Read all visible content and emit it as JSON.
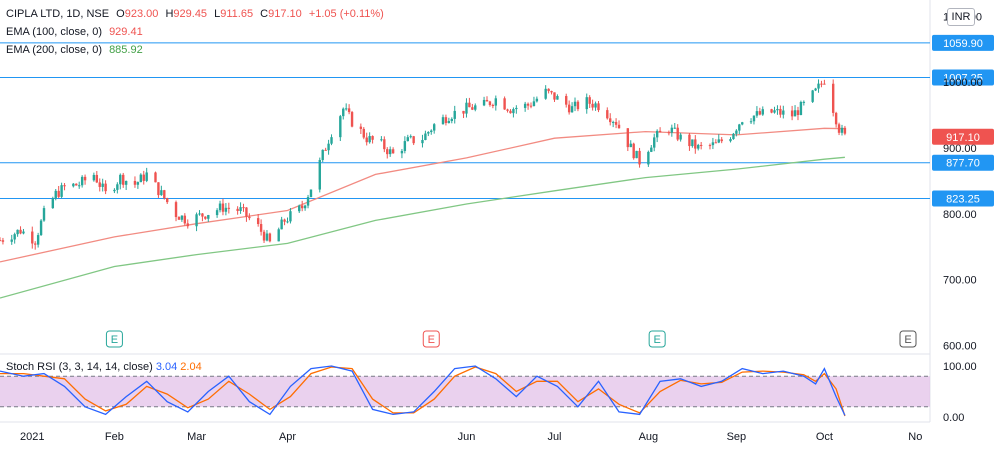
{
  "header": {
    "symbol": "CIPLA LTD, 1D, NSE",
    "open_label": "O",
    "open": "923.00",
    "high_label": "H",
    "high": "929.45",
    "low_label": "L",
    "low": "911.65",
    "close_label": "C",
    "close": "917.10",
    "change": "+1.05 (+0.11%)",
    "ema100_label": "EMA (100, close, 0)",
    "ema100_value": "929.41",
    "ema200_label": "EMA (200, close, 0)",
    "ema200_value": "885.92",
    "currency": "INR"
  },
  "stoch": {
    "label": "Stoch RSI (3, 3, 14, 14, close)",
    "k_value": "3.04",
    "d_value": "2.04",
    "levels": [
      80,
      20
    ],
    "ylim": [
      0,
      100
    ],
    "y_ticks": [
      "100.00",
      "0.00"
    ]
  },
  "colors": {
    "up": "#26a69a",
    "down": "#ef5350",
    "ema100": "#f28b82",
    "ema200": "#81c784",
    "hline": "#2196f3",
    "stoch_k": "#2962ff",
    "stoch_d": "#ff6d00",
    "stoch_band": "#e1bee7"
  },
  "chart_data": {
    "type": "candlestick",
    "title": "CIPLA LTD, 1D, NSE",
    "ylim": [
      590,
      1125
    ],
    "y_ticks": [
      "1100.00",
      "1000.00",
      "900.00",
      "800.00",
      "700.00",
      "600.00"
    ],
    "x_ticks": [
      "2021",
      "Feb",
      "Mar",
      "Apr",
      "Jun",
      "Jul",
      "Aug",
      "Sep",
      "Oct",
      "No"
    ],
    "horizontal_lines": [
      {
        "value": 1059.9,
        "label": "1059.90"
      },
      {
        "value": 1007.25,
        "label": "1007.25"
      },
      {
        "value": 877.7,
        "label": "877.70"
      },
      {
        "value": 823.25,
        "label": "823.25"
      }
    ],
    "last_price": {
      "value": 917.1,
      "label": "917.10"
    },
    "event_markers": [
      {
        "label": "E",
        "date": "Feb"
      },
      {
        "label": "E",
        "date": "May"
      },
      {
        "label": "E",
        "date": "Aug"
      },
      {
        "label": "E",
        "date": "Nov"
      }
    ],
    "close_path": [
      {
        "date": "2020-12-24",
        "close": 760
      },
      {
        "date": "2020-12-31",
        "close": 775
      },
      {
        "date": "2021-01-05",
        "close": 760
      },
      {
        "date": "2021-01-08",
        "close": 800
      },
      {
        "date": "2021-01-12",
        "close": 830
      },
      {
        "date": "2021-01-15",
        "close": 840
      },
      {
        "date": "2021-01-20",
        "close": 845
      },
      {
        "date": "2021-01-25",
        "close": 860
      },
      {
        "date": "2021-01-29",
        "close": 830
      },
      {
        "date": "2021-02-03",
        "close": 855
      },
      {
        "date": "2021-02-08",
        "close": 845
      },
      {
        "date": "2021-02-12",
        "close": 860
      },
      {
        "date": "2021-02-17",
        "close": 830
      },
      {
        "date": "2021-02-22",
        "close": 800
      },
      {
        "date": "2021-02-26",
        "close": 790
      },
      {
        "date": "2021-03-04",
        "close": 800
      },
      {
        "date": "2021-03-10",
        "close": 810
      },
      {
        "date": "2021-03-16",
        "close": 805
      },
      {
        "date": "2021-03-22",
        "close": 780
      },
      {
        "date": "2021-03-26",
        "close": 755
      },
      {
        "date": "2021-03-31",
        "close": 790
      },
      {
        "date": "2021-04-06",
        "close": 810
      },
      {
        "date": "2021-04-09",
        "close": 840
      },
      {
        "date": "2021-04-13",
        "close": 890
      },
      {
        "date": "2021-04-16",
        "close": 925
      },
      {
        "date": "2021-04-20",
        "close": 960
      },
      {
        "date": "2021-04-23",
        "close": 940
      },
      {
        "date": "2021-04-28",
        "close": 915
      },
      {
        "date": "2021-05-03",
        "close": 905
      },
      {
        "date": "2021-05-07",
        "close": 890
      },
      {
        "date": "2021-05-12",
        "close": 910
      },
      {
        "date": "2021-05-17",
        "close": 915
      },
      {
        "date": "2021-05-21",
        "close": 935
      },
      {
        "date": "2021-05-26",
        "close": 950
      },
      {
        "date": "2021-06-01",
        "close": 960
      },
      {
        "date": "2021-06-07",
        "close": 965
      },
      {
        "date": "2021-06-11",
        "close": 975
      },
      {
        "date": "2021-06-16",
        "close": 960
      },
      {
        "date": "2021-06-22",
        "close": 965
      },
      {
        "date": "2021-06-28",
        "close": 985
      },
      {
        "date": "2021-07-02",
        "close": 975
      },
      {
        "date": "2021-07-07",
        "close": 960
      },
      {
        "date": "2021-07-12",
        "close": 970
      },
      {
        "date": "2021-07-16",
        "close": 965
      },
      {
        "date": "2021-07-22",
        "close": 940
      },
      {
        "date": "2021-07-27",
        "close": 900
      },
      {
        "date": "2021-07-30",
        "close": 880
      },
      {
        "date": "2021-08-04",
        "close": 915
      },
      {
        "date": "2021-08-09",
        "close": 930
      },
      {
        "date": "2021-08-13",
        "close": 915
      },
      {
        "date": "2021-08-19",
        "close": 900
      },
      {
        "date": "2021-08-25",
        "close": 905
      },
      {
        "date": "2021-08-30",
        "close": 920
      },
      {
        "date": "2021-09-03",
        "close": 945
      },
      {
        "date": "2021-09-08",
        "close": 950
      },
      {
        "date": "2021-09-14",
        "close": 955
      },
      {
        "date": "2021-09-20",
        "close": 950
      },
      {
        "date": "2021-09-24",
        "close": 965
      },
      {
        "date": "2021-09-28",
        "close": 985
      },
      {
        "date": "2021-10-01",
        "close": 1005
      },
      {
        "date": "2021-10-04",
        "close": 960
      },
      {
        "date": "2021-10-06",
        "close": 930
      },
      {
        "date": "2021-10-08",
        "close": 917.1
      }
    ],
    "ema100_path": [
      {
        "date": "2020-12-24",
        "value": 727
      },
      {
        "date": "2021-02-01",
        "value": 765
      },
      {
        "date": "2021-03-01",
        "value": 785
      },
      {
        "date": "2021-04-01",
        "value": 805
      },
      {
        "date": "2021-05-01",
        "value": 860
      },
      {
        "date": "2021-06-01",
        "value": 885
      },
      {
        "date": "2021-07-01",
        "value": 915
      },
      {
        "date": "2021-08-01",
        "value": 925
      },
      {
        "date": "2021-09-01",
        "value": 920
      },
      {
        "date": "2021-10-01",
        "value": 930
      },
      {
        "date": "2021-10-08",
        "value": 929.41
      }
    ],
    "ema200_path": [
      {
        "date": "2020-12-24",
        "value": 672
      },
      {
        "date": "2021-02-01",
        "value": 720
      },
      {
        "date": "2021-03-01",
        "value": 738
      },
      {
        "date": "2021-04-01",
        "value": 755
      },
      {
        "date": "2021-05-01",
        "value": 790
      },
      {
        "date": "2021-06-01",
        "value": 815
      },
      {
        "date": "2021-07-01",
        "value": 835
      },
      {
        "date": "2021-08-01",
        "value": 855
      },
      {
        "date": "2021-09-01",
        "value": 868
      },
      {
        "date": "2021-10-01",
        "value": 883
      },
      {
        "date": "2021-10-08",
        "value": 885.92
      }
    ],
    "stoch_k_path": [
      {
        "date": "2020-12-24",
        "value": 90
      },
      {
        "date": "2021-01-01",
        "value": 80
      },
      {
        "date": "2021-01-08",
        "value": 85
      },
      {
        "date": "2021-01-15",
        "value": 60
      },
      {
        "date": "2021-01-22",
        "value": 20
      },
      {
        "date": "2021-01-29",
        "value": 5
      },
      {
        "date": "2021-02-05",
        "value": 40
      },
      {
        "date": "2021-02-12",
        "value": 70
      },
      {
        "date": "2021-02-19",
        "value": 30
      },
      {
        "date": "2021-02-26",
        "value": 10
      },
      {
        "date": "2021-03-05",
        "value": 50
      },
      {
        "date": "2021-03-12",
        "value": 80
      },
      {
        "date": "2021-03-19",
        "value": 30
      },
      {
        "date": "2021-03-26",
        "value": 5
      },
      {
        "date": "2021-04-02",
        "value": 60
      },
      {
        "date": "2021-04-09",
        "value": 95
      },
      {
        "date": "2021-04-16",
        "value": 100
      },
      {
        "date": "2021-04-23",
        "value": 90
      },
      {
        "date": "2021-04-30",
        "value": 15
      },
      {
        "date": "2021-05-07",
        "value": 5
      },
      {
        "date": "2021-05-14",
        "value": 10
      },
      {
        "date": "2021-05-21",
        "value": 50
      },
      {
        "date": "2021-05-28",
        "value": 95
      },
      {
        "date": "2021-06-04",
        "value": 100
      },
      {
        "date": "2021-06-11",
        "value": 75
      },
      {
        "date": "2021-06-18",
        "value": 40
      },
      {
        "date": "2021-06-25",
        "value": 80
      },
      {
        "date": "2021-07-02",
        "value": 60
      },
      {
        "date": "2021-07-09",
        "value": 20
      },
      {
        "date": "2021-07-16",
        "value": 70
      },
      {
        "date": "2021-07-23",
        "value": 10
      },
      {
        "date": "2021-07-30",
        "value": 5
      },
      {
        "date": "2021-08-06",
        "value": 70
      },
      {
        "date": "2021-08-13",
        "value": 75
      },
      {
        "date": "2021-08-20",
        "value": 60
      },
      {
        "date": "2021-08-27",
        "value": 70
      },
      {
        "date": "2021-09-03",
        "value": 95
      },
      {
        "date": "2021-09-10",
        "value": 85
      },
      {
        "date": "2021-09-17",
        "value": 90
      },
      {
        "date": "2021-09-24",
        "value": 80
      },
      {
        "date": "2021-09-28",
        "value": 65
      },
      {
        "date": "2021-10-01",
        "value": 95
      },
      {
        "date": "2021-10-05",
        "value": 40
      },
      {
        "date": "2021-10-08",
        "value": 3.04
      }
    ],
    "stoch_d_path": [
      {
        "date": "2020-12-24",
        "value": 85
      },
      {
        "date": "2021-01-01",
        "value": 85
      },
      {
        "date": "2021-01-08",
        "value": 80
      },
      {
        "date": "2021-01-15",
        "value": 75
      },
      {
        "date": "2021-01-22",
        "value": 35
      },
      {
        "date": "2021-01-29",
        "value": 12
      },
      {
        "date": "2021-02-05",
        "value": 25
      },
      {
        "date": "2021-02-12",
        "value": 60
      },
      {
        "date": "2021-02-19",
        "value": 45
      },
      {
        "date": "2021-02-26",
        "value": 18
      },
      {
        "date": "2021-03-05",
        "value": 35
      },
      {
        "date": "2021-03-12",
        "value": 70
      },
      {
        "date": "2021-03-19",
        "value": 45
      },
      {
        "date": "2021-03-26",
        "value": 15
      },
      {
        "date": "2021-04-02",
        "value": 40
      },
      {
        "date": "2021-04-09",
        "value": 85
      },
      {
        "date": "2021-04-16",
        "value": 98
      },
      {
        "date": "2021-04-23",
        "value": 95
      },
      {
        "date": "2021-04-30",
        "value": 35
      },
      {
        "date": "2021-05-07",
        "value": 8
      },
      {
        "date": "2021-05-14",
        "value": 8
      },
      {
        "date": "2021-05-21",
        "value": 35
      },
      {
        "date": "2021-05-28",
        "value": 80
      },
      {
        "date": "2021-06-04",
        "value": 98
      },
      {
        "date": "2021-06-11",
        "value": 85
      },
      {
        "date": "2021-06-18",
        "value": 50
      },
      {
        "date": "2021-06-25",
        "value": 70
      },
      {
        "date": "2021-07-02",
        "value": 70
      },
      {
        "date": "2021-07-09",
        "value": 30
      },
      {
        "date": "2021-07-16",
        "value": 55
      },
      {
        "date": "2021-07-23",
        "value": 25
      },
      {
        "date": "2021-07-30",
        "value": 8
      },
      {
        "date": "2021-08-06",
        "value": 50
      },
      {
        "date": "2021-08-13",
        "value": 72
      },
      {
        "date": "2021-08-20",
        "value": 65
      },
      {
        "date": "2021-08-27",
        "value": 68
      },
      {
        "date": "2021-09-03",
        "value": 88
      },
      {
        "date": "2021-09-10",
        "value": 90
      },
      {
        "date": "2021-09-17",
        "value": 88
      },
      {
        "date": "2021-09-24",
        "value": 83
      },
      {
        "date": "2021-09-28",
        "value": 70
      },
      {
        "date": "2021-10-01",
        "value": 85
      },
      {
        "date": "2021-10-05",
        "value": 55
      },
      {
        "date": "2021-10-08",
        "value": 2.04
      }
    ]
  }
}
